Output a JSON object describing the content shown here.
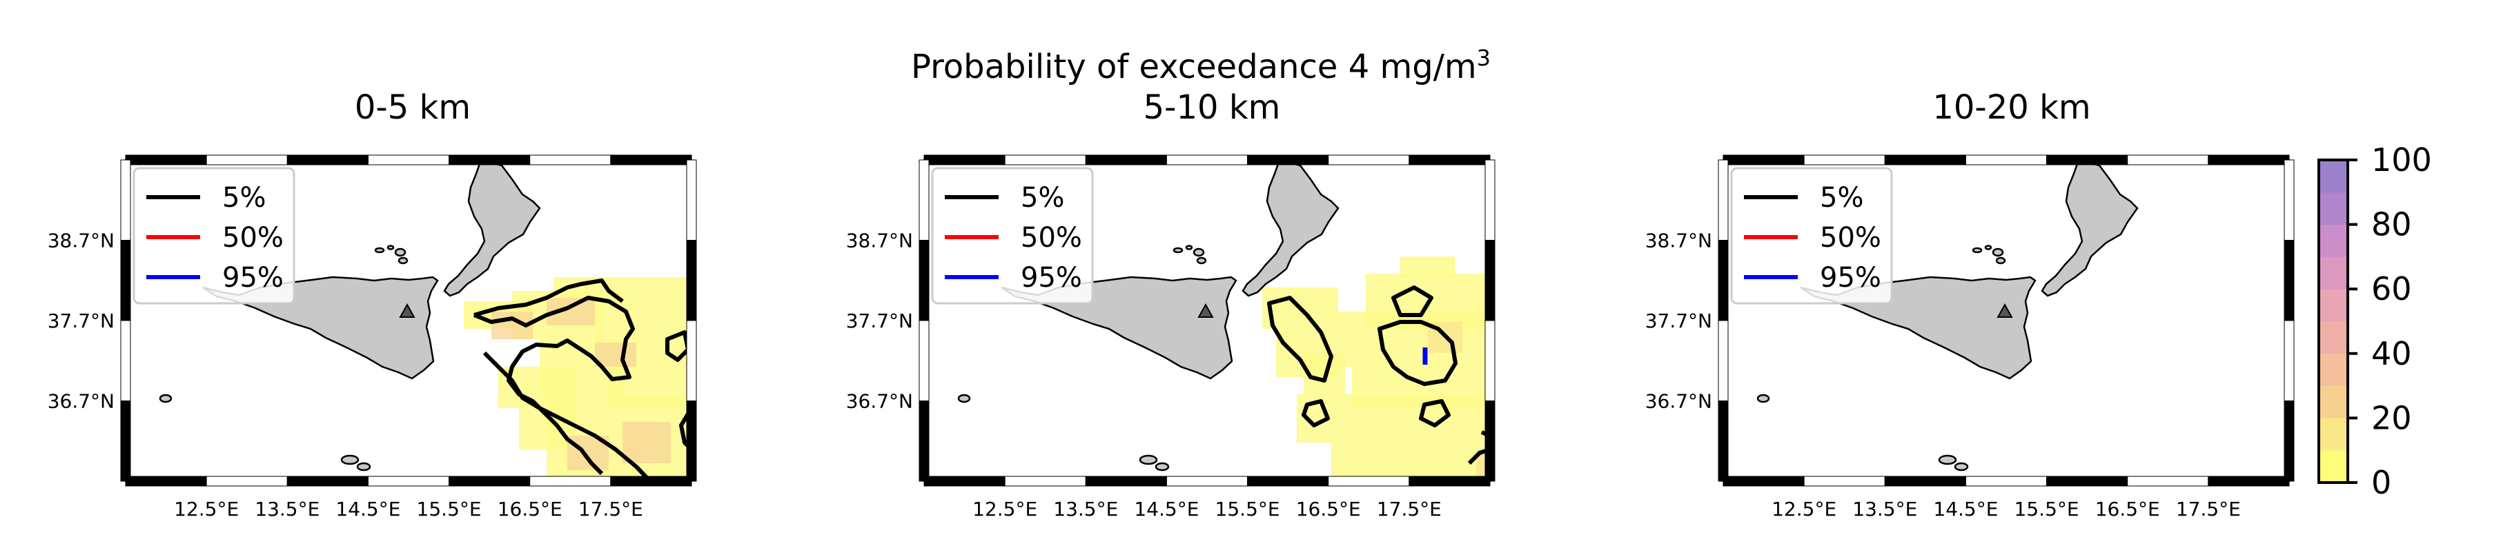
{
  "figure": {
    "title_main": "Probability of exceedance 4 mg/m",
    "title_sup": "3"
  },
  "panels": [
    {
      "title": "0-5 km"
    },
    {
      "title": "5-10 km"
    },
    {
      "title": "10-20 km"
    }
  ],
  "axes": {
    "lon_ticks": [
      "12.5°E",
      "13.5°E",
      "14.5°E",
      "15.5°E",
      "16.5°E",
      "17.5°E"
    ],
    "lat_ticks": [
      "38.7°N",
      "37.7°N",
      "36.7°N"
    ],
    "lon_values": [
      12.5,
      13.5,
      14.5,
      15.5,
      16.5,
      17.5
    ],
    "lat_values": [
      38.7,
      37.7,
      36.7
    ],
    "lon_range": [
      11.5,
      18.5
    ],
    "lat_range": [
      35.7,
      39.7
    ]
  },
  "legend": {
    "placement": "upper-left",
    "items": [
      {
        "label": "5%",
        "color": "#000000"
      },
      {
        "label": "50%",
        "color": "#ff0000"
      },
      {
        "label": "95%",
        "color": "#0000ff"
      }
    ]
  },
  "colorbar": {
    "ticks": [
      "0",
      "20",
      "40",
      "60",
      "80",
      "100"
    ],
    "range": [
      0,
      100
    ],
    "colors": [
      "#fffc7a",
      "#fbe787",
      "#f7d090",
      "#f4bf9a",
      "#f0b0a8",
      "#e9a5b5",
      "#dd98c0",
      "#cc8ec9",
      "#b286cc",
      "#9c80cc"
    ]
  },
  "map": {
    "land_color": "#c8c8c8",
    "exceed_color": "#fdfa8a",
    "volcano_marker": "triangle"
  }
}
